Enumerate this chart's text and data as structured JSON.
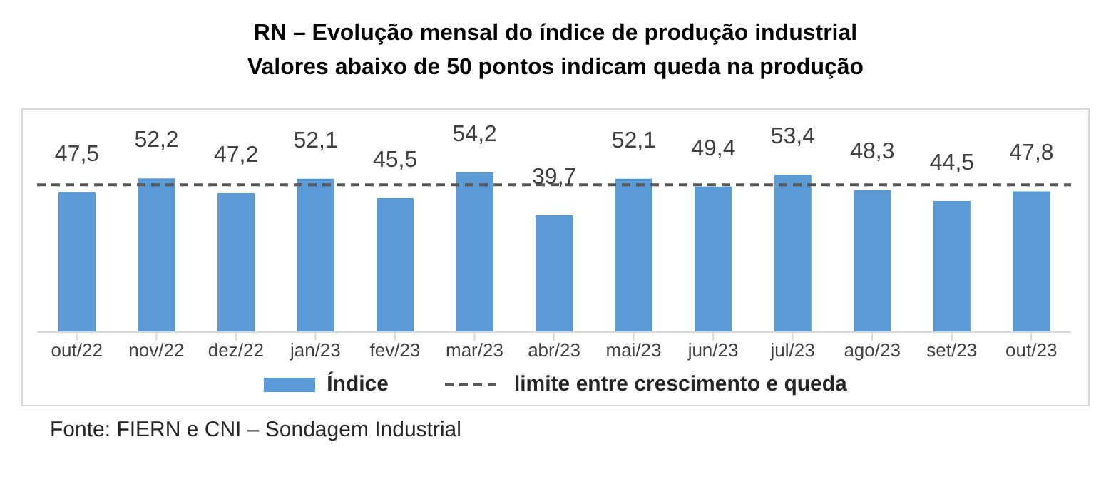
{
  "chart_data": {
    "type": "bar",
    "title": "RN – Evolução mensal do índice de produção industrial",
    "subtitle": "Valores abaixo de 50 pontos indicam queda na produção",
    "categories": [
      "out/22",
      "nov/22",
      "dez/22",
      "jan/23",
      "fev/23",
      "mar/23",
      "abr/23",
      "mai/23",
      "jun/23",
      "jul/23",
      "ago/23",
      "set/23",
      "out/23"
    ],
    "series": [
      {
        "name": "Índice",
        "color": "#5b9bd5",
        "values": [
          47.5,
          52.2,
          47.2,
          52.1,
          45.5,
          54.2,
          39.7,
          52.1,
          49.4,
          53.4,
          48.3,
          44.5,
          47.8
        ],
        "value_labels": [
          "47,5",
          "52,2",
          "47,2",
          "52,1",
          "45,5",
          "54,2",
          "39,7",
          "52,1",
          "49,4",
          "53,4",
          "48,3",
          "44,5",
          "47,8"
        ]
      }
    ],
    "ref_lines": [
      {
        "axis": "y",
        "value": 50,
        "label": "limite entre crescimento e queda",
        "color": "#595959",
        "line_style": "dashed"
      }
    ],
    "tick_labels": "x",
    "grid": false,
    "legend": "bottom",
    "annotations": [
      "Fonte: FIERN e CNI – Sondagem Industrial"
    ]
  }
}
